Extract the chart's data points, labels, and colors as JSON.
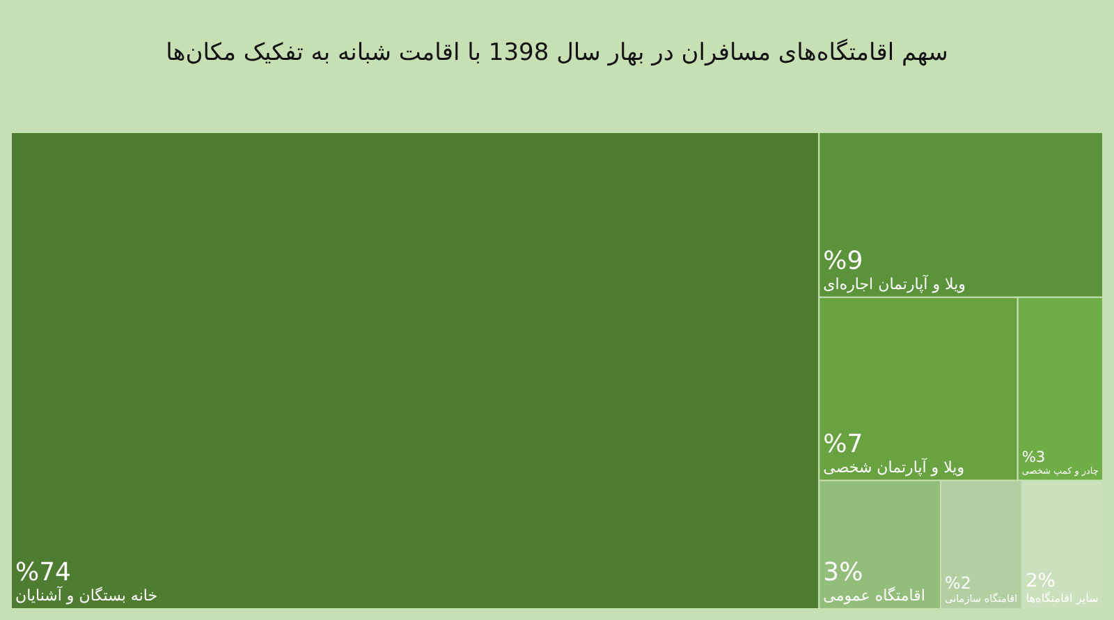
{
  "chart_data": {
    "type": "other",
    "title": "سهم اقامتگاه‌های مسافران در بهار سال 1398 با اقامت شبانه به تفکیک مکان‌ها",
    "categories": [
      "خانه بستگان و آشنایان",
      "ویلا و آپارتمان اجاره‌ای",
      "ویلا و آپارتمان شخصی",
      "چادر و کمپ شخصی",
      "اقامتگاه عمومی",
      "اقامتگاه سازمانی",
      "سایر اقامتگاه‌ها"
    ],
    "values": [
      74,
      9,
      7,
      3,
      3,
      2,
      2
    ],
    "value_labels": [
      "%74",
      "%9",
      "%7",
      "%3",
      "3%",
      "%2",
      "2%"
    ],
    "colors": [
      "#4e7d31",
      "#5a9339",
      "#68a241",
      "#6fad47",
      "#93bd7b",
      "#b3cfa2",
      "#cbe0bd"
    ]
  }
}
